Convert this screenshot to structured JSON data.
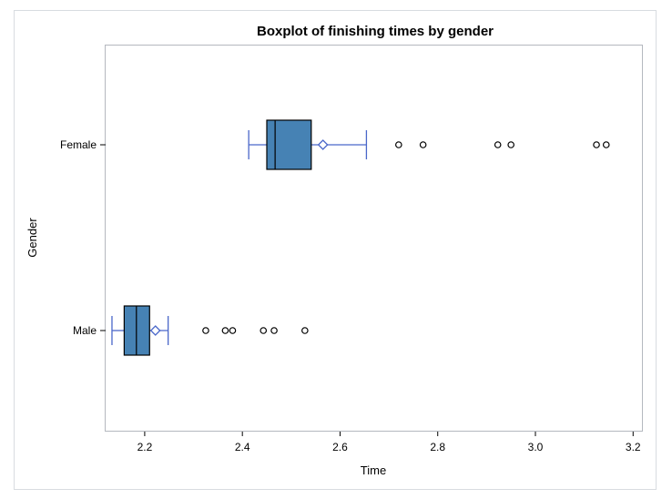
{
  "colors": {
    "box_fill": "#4682b4",
    "box_stroke": "#000000",
    "whisker": "#4a67c9",
    "mean_marker": "#4a67c9",
    "outlier": "#000000",
    "frame": "#b4b8bf",
    "border": "#d8dce0"
  },
  "chart_data": {
    "type": "boxplot",
    "title": "Boxplot of finishing times by gender",
    "xlabel": "Time",
    "ylabel": "Gender",
    "xlim": [
      2.12,
      3.22
    ],
    "xticks": [
      2.2,
      2.4,
      2.6,
      2.8,
      3.0,
      3.2
    ],
    "xtick_labels": [
      "2.2",
      "2.4",
      "2.6",
      "2.8",
      "3.0",
      "3.2"
    ],
    "orientation": "horizontal",
    "grid": false,
    "legend": "none",
    "categories": [
      "Female",
      "Male"
    ],
    "boxes": [
      {
        "category": "Female",
        "whisker_low": 2.413,
        "q1": 2.45,
        "median": 2.467,
        "q3": 2.541,
        "whisker_high": 2.654,
        "mean": 2.565,
        "outliers": [
          2.72,
          2.77,
          2.923,
          2.95,
          3.125,
          3.145
        ]
      },
      {
        "category": "Male",
        "whisker_low": 2.133,
        "q1": 2.158,
        "median": 2.183,
        "q3": 2.21,
        "whisker_high": 2.248,
        "mean": 2.222,
        "outliers": [
          2.325,
          2.365,
          2.38,
          2.443,
          2.465,
          2.528
        ]
      }
    ]
  }
}
